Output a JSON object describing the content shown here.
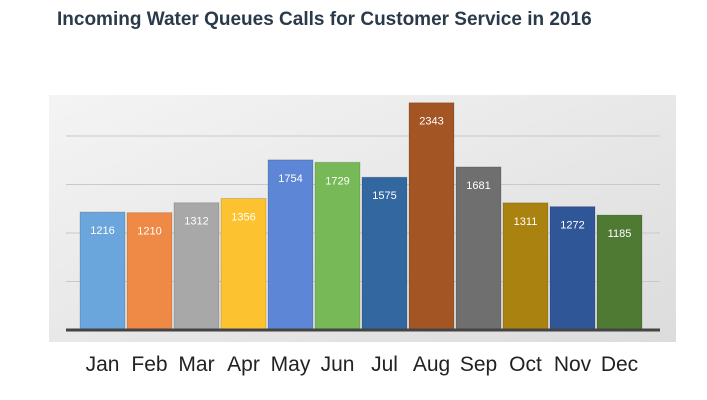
{
  "chart_data": {
    "type": "bar",
    "title": "Incoming Water Queues Calls for Customer Service in 2016",
    "categories": [
      "Jan",
      "Feb",
      "Mar",
      "Apr",
      "May",
      "Jun",
      "Jul",
      "Aug",
      "Sep",
      "Oct",
      "Nov",
      "Dec"
    ],
    "values": [
      1216,
      1210,
      1312,
      1356,
      1754,
      1729,
      1575,
      2343,
      1681,
      1311,
      1272,
      1185
    ],
    "colors": [
      "#6aa5dc",
      "#ee8a45",
      "#a8a8a8",
      "#fcc22f",
      "#5d86d6",
      "#78b957",
      "#33679f",
      "#a45524",
      "#6f6f6f",
      "#a9820f",
      "#2f5697",
      "#4f7a34"
    ],
    "xlabel": "",
    "ylabel": "",
    "ylim": [
      0,
      2400
    ],
    "grid": true,
    "legend": "none",
    "data_labels": true
  }
}
